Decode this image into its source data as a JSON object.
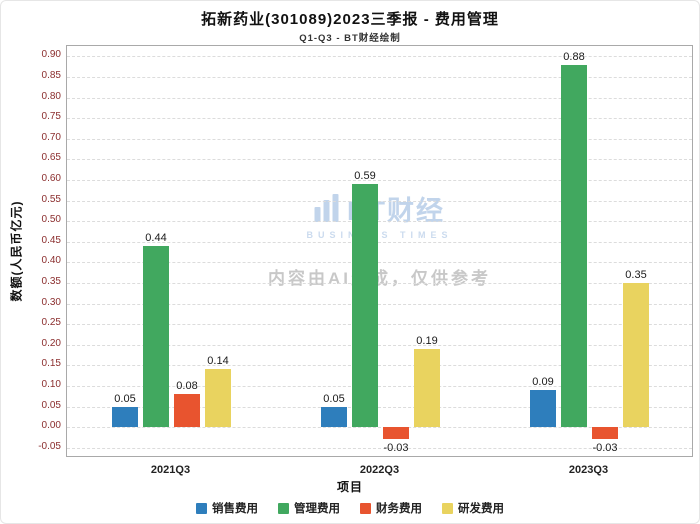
{
  "chart_data": {
    "type": "bar",
    "title": "拓新药业(301089)2023三季报 - 费用管理",
    "subtitle": "Q1-Q3 - BT财经绘制",
    "xlabel": "项目",
    "ylabel": "数额(人民币亿元)",
    "categories": [
      "2021Q3",
      "2022Q3",
      "2023Q3"
    ],
    "series": [
      {
        "name": "销售费用",
        "color": "#2e7ebc",
        "values": [
          0.05,
          0.05,
          0.09
        ]
      },
      {
        "name": "管理费用",
        "color": "#41a85f",
        "values": [
          0.44,
          0.59,
          0.88
        ]
      },
      {
        "name": "财务费用",
        "color": "#e8542f",
        "values": [
          0.08,
          -0.03,
          -0.03
        ]
      },
      {
        "name": "研发费用",
        "color": "#e9d35f",
        "values": [
          0.14,
          0.19,
          0.35
        ]
      }
    ],
    "ylim": [
      -0.075,
      0.925
    ],
    "yticks": [
      "0.90",
      "0.85",
      "0.80",
      "0.75",
      "0.70",
      "0.65",
      "0.60",
      "0.55",
      "0.50",
      "0.45",
      "0.40",
      "0.35",
      "0.30",
      "0.25",
      "0.20",
      "0.15",
      "0.10",
      "0.05",
      "0.00",
      "-0.05"
    ],
    "grid": true,
    "legend_position": "bottom",
    "tick_label_color": "#8b2e2e",
    "watermark": {
      "logo_text": "BT财经",
      "logo_subtext": "BUSINESS TIMES",
      "disclaimer": "内容由AI生成，仅供参考"
    }
  }
}
